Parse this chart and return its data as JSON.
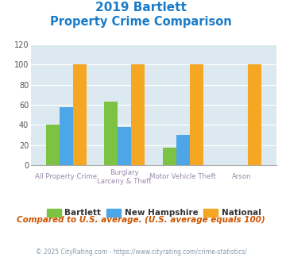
{
  "title_line1": "2019 Bartlett",
  "title_line2": "Property Crime Comparison",
  "bartlett": [
    40,
    63,
    17,
    0
  ],
  "new_hampshire": [
    58,
    38,
    30,
    0
  ],
  "national": [
    100,
    100,
    100,
    100
  ],
  "bar_colors": {
    "bartlett": "#7cc344",
    "new_hampshire": "#4da6e8",
    "national": "#f5a623"
  },
  "ylim": [
    0,
    120
  ],
  "yticks": [
    0,
    20,
    40,
    60,
    80,
    100,
    120
  ],
  "bg_color": "#dce9f0",
  "title_color": "#1a7cc9",
  "xlabel_top": [
    "All Property Crime",
    "Burglary",
    "Motor Vehicle Theft",
    "Arson"
  ],
  "xlabel_bottom": [
    "",
    "Larceny & Theft",
    "",
    ""
  ],
  "legend_labels": [
    "Bartlett",
    "New Hampshire",
    "National"
  ],
  "subtitle_note": "Compared to U.S. average. (U.S. average equals 100)",
  "footnote": "© 2025 CityRating.com - https://www.cityrating.com/crime-statistics/",
  "note_color": "#cc5500",
  "footnote_color": "#8899aa",
  "xlabel_color": "#9988aa"
}
